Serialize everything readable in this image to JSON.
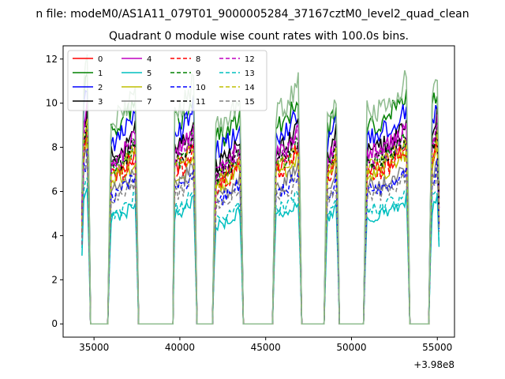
{
  "figure": {
    "suptitle": "n file: modeM0/AS1A11_079T01_9000005284_37167cztM0_level2_quad_clean",
    "offset_label": "+3.98e8"
  },
  "chart_data": {
    "type": "line",
    "title": "Quadrant 0 module wise count rates with 100.0s bins.",
    "xlabel": "",
    "ylabel": "",
    "xlim": [
      33200,
      56000
    ],
    "ylim": [
      -0.6,
      12.6
    ],
    "x_offset": 398000000,
    "xticks": [
      35000,
      40000,
      45000,
      50000,
      55000
    ],
    "xtick_labels": [
      "35000",
      "40000",
      "45000",
      "50000",
      "55000"
    ],
    "yticks": [
      0,
      2,
      4,
      6,
      8,
      10,
      12
    ],
    "ytick_labels": [
      "0",
      "2",
      "4",
      "6",
      "8",
      "10",
      "12"
    ],
    "grid": false,
    "legend": {
      "placement": "top-left",
      "ncol": 4
    },
    "segments": [
      {
        "start": 34300,
        "end": 34700,
        "y0": 9.5
      },
      {
        "start": 35900,
        "end": 37500,
        "y0": 8.0
      },
      {
        "start": 39650,
        "end": 40900,
        "y0": 8.3
      },
      {
        "start": 42000,
        "end": 43600,
        "y0": 7.6
      },
      {
        "start": 45500,
        "end": 47000,
        "y0": 8.2
      },
      {
        "start": 48500,
        "end": 49200,
        "y0": 8.0
      },
      {
        "start": 50800,
        "end": 53300,
        "y0": 8.2
      },
      {
        "start": 54600,
        "end": 55100,
        "y0": 8.8
      }
    ],
    "series": [
      {
        "name": "0",
        "color": "#ff0000",
        "dash": "solid",
        "level": 7.6
      },
      {
        "name": "1",
        "color": "#008000",
        "dash": "solid",
        "level": 9.8
      },
      {
        "name": "2",
        "color": "#0000ff",
        "dash": "solid",
        "level": 9.2
      },
      {
        "name": "3",
        "color": "#000000",
        "dash": "solid",
        "level": 8.5
      },
      {
        "name": "4",
        "color": "#bf00bf",
        "dash": "solid",
        "level": 8.3
      },
      {
        "name": "5",
        "color": "#00bfbf",
        "dash": "solid",
        "level": 5.3
      },
      {
        "name": "6",
        "color": "#bfbf00",
        "dash": "solid",
        "level": 7.2
      },
      {
        "name": "7",
        "color": "#808080",
        "dash": "solid",
        "level": 6.8
      },
      {
        "name": "8",
        "color": "#ff0000",
        "dash": "dashed",
        "level": 7.4
      },
      {
        "name": "9",
        "color": "#008000",
        "dash": "dashed",
        "level": 7.9
      },
      {
        "name": "10",
        "color": "#0000ff",
        "dash": "dashed",
        "level": 6.5
      },
      {
        "name": "11",
        "color": "#000000",
        "dash": "dashed",
        "level": 8.0
      },
      {
        "name": "12",
        "color": "#bf00bf",
        "dash": "dashed",
        "level": 8.1
      },
      {
        "name": "13",
        "color": "#00bfbf",
        "dash": "dashed",
        "level": 5.6
      },
      {
        "name": "14",
        "color": "#bfbf00",
        "dash": "dashed",
        "level": 7.7
      },
      {
        "name": "15",
        "color": "#808080",
        "dash": "dashed",
        "level": 6.3
      }
    ],
    "highlight_series": {
      "name": "",
      "color": "#8fbc8f"
    }
  }
}
